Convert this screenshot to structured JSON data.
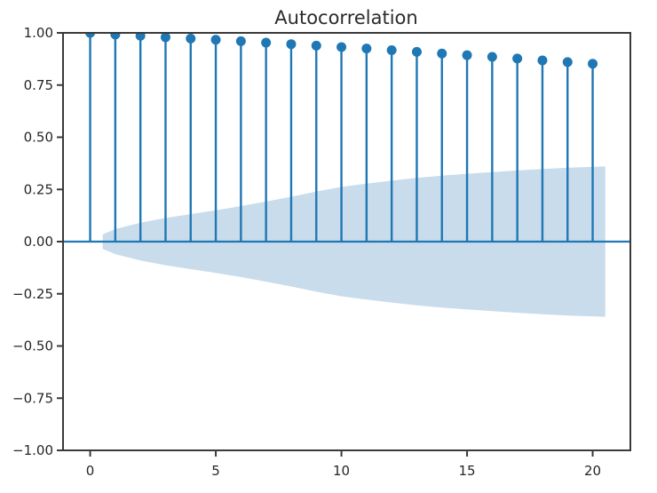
{
  "figure": {
    "title": "Autocorrelation"
  },
  "chart_data": {
    "type": "stem",
    "title": "Autocorrelation",
    "xlabel": "",
    "ylabel": "",
    "x": [
      0,
      1,
      2,
      3,
      4,
      5,
      6,
      7,
      8,
      9,
      10,
      11,
      12,
      13,
      14,
      15,
      16,
      17,
      18,
      19,
      20
    ],
    "acf": [
      1.0,
      0.992,
      0.986,
      0.979,
      0.973,
      0.967,
      0.96,
      0.953,
      0.946,
      0.939,
      0.932,
      0.925,
      0.917,
      0.909,
      0.901,
      0.893,
      0.885,
      0.877,
      0.868,
      0.86,
      0.852
    ],
    "confidence_band": {
      "centered_at": 0,
      "lags": [
        0.5,
        1.0,
        2.0,
        3.0,
        4.0,
        5.0,
        6.0,
        7.0,
        8.0,
        9.0,
        10.0,
        11.0,
        12.0,
        13.0,
        14.0,
        15.0,
        16.0,
        17.0,
        18.0,
        19.0,
        20.0,
        20.5
      ],
      "half_width": [
        0.035,
        0.06,
        0.09,
        0.113,
        0.132,
        0.15,
        0.17,
        0.192,
        0.215,
        0.24,
        0.262,
        0.278,
        0.292,
        0.305,
        0.316,
        0.325,
        0.333,
        0.341,
        0.348,
        0.354,
        0.358,
        0.36
      ]
    },
    "xlim": [
      -1.08,
      21.5
    ],
    "ylim": [
      -1.0,
      1.0
    ],
    "xticks": [
      0,
      5,
      10,
      15,
      20
    ],
    "xtick_labels": [
      "0",
      "5",
      "10",
      "15",
      "20"
    ],
    "yticks": [
      1.0,
      0.75,
      0.5,
      0.25,
      0.0,
      -0.25,
      -0.5,
      -0.75,
      -1.0
    ],
    "ytick_labels": [
      "1.00",
      "0.75",
      "0.50",
      "0.25",
      "0.00",
      "−0.25",
      "−0.50",
      "−0.75",
      "−1.00"
    ],
    "grid": false,
    "legend": null,
    "zero_line": true,
    "colors": {
      "stem": "#1f77b4",
      "marker": "#1f77b4",
      "confidence_band": "#c8dcec",
      "zero_line": "#1f77b4",
      "spine": "#3a3a3a",
      "tick_text": "#262626",
      "background": "#ffffff"
    }
  }
}
